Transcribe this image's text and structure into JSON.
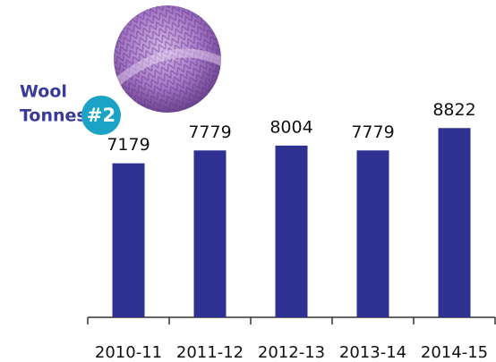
{
  "chart_data": {
    "type": "bar",
    "title": "Wool",
    "subtitle": "Tonnes",
    "badge": "#2",
    "categories": [
      "2010-11",
      "2011-12",
      "2012-13",
      "2013-14",
      "2014-15"
    ],
    "values": [
      7179,
      7779,
      8004,
      7779,
      8822
    ],
    "color": "#2e3192",
    "ylim": [
      0,
      10000
    ]
  }
}
